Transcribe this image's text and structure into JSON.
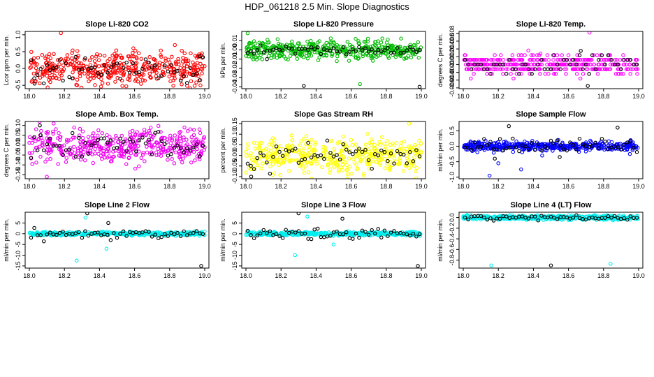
{
  "page_title": "HDP_061218  2.5 Min. Slope Diagnostics",
  "chart_data": [
    {
      "type": "scatter",
      "title": "Slope Li-820 CO2",
      "ylabel": "Lcor ppm per min.",
      "color": "#ff0000",
      "xlim": [
        18.0,
        19.0
      ],
      "ylim": [
        -0.6,
        1.1
      ],
      "xticks": [
        18.0,
        18.2,
        18.4,
        18.6,
        18.8,
        19.0
      ],
      "xtick_labels": [
        "18.0",
        "18.2",
        "18.4",
        "18.6",
        "18.8",
        "19.0"
      ],
      "yticks": [
        -0.5,
        0.0,
        0.5,
        1.0
      ],
      "ytick_labels": [
        "-0.5",
        "0.0",
        "0.5",
        "1.0"
      ],
      "center": 0.0,
      "spread": 0.25,
      "black_spread": 0.2,
      "outliers": [
        [
          18.18,
          1.05
        ],
        [
          18.03,
          -0.45
        ],
        [
          18.92,
          0.45
        ],
        [
          18.97,
          -0.35
        ]
      ]
    },
    {
      "type": "scatter",
      "title": "Slope Li-820 Pressure",
      "ylabel": "kPa per min.",
      "color": "#00bb00",
      "xlim": [
        18.0,
        19.0
      ],
      "ylim": [
        -0.042,
        0.02
      ],
      "xticks": [
        18.0,
        18.2,
        18.4,
        18.6,
        18.8,
        19.0
      ],
      "xtick_labels": [
        "18.0",
        "18.2",
        "18.4",
        "18.6",
        "18.8",
        "19.0"
      ],
      "yticks": [
        -0.04,
        -0.03,
        -0.02,
        -0.01,
        0.0,
        0.01
      ],
      "ytick_labels": [
        "-0.04",
        "-0.03",
        "-0.02",
        "-0.01",
        "0.00",
        "0.01"
      ],
      "center": 0.0,
      "spread": 0.005,
      "black_spread": 0.002,
      "outliers": [
        [
          18.01,
          0.018
        ],
        [
          18.33,
          -0.039
        ],
        [
          18.65,
          -0.037
        ],
        [
          18.99,
          -0.04
        ],
        [
          18.72,
          -0.008
        ],
        [
          18.12,
          -0.01
        ]
      ]
    },
    {
      "type": "scatter",
      "title": "Slope Li-820 Temp.",
      "ylabel": "degrees C per min.",
      "color": "#ff00ff",
      "xlim": [
        18.0,
        19.0
      ],
      "ylim": [
        -0.0062,
        0.0085
      ],
      "xticks": [
        18.0,
        18.2,
        18.4,
        18.6,
        18.8,
        19.0
      ],
      "xtick_labels": [
        "18.0",
        "18.2",
        "18.4",
        "18.6",
        "18.8",
        "19.0"
      ],
      "yticks": [
        -0.006,
        -0.004,
        -0.002,
        0.0,
        0.002,
        0.004,
        0.006,
        0.008
      ],
      "ytick_labels": [
        "-0.006",
        "-0.004",
        "-0.002",
        "0.000",
        "0.002",
        "0.004",
        "0.006",
        "0.008"
      ],
      "center": 0.0,
      "spread": 0.0012,
      "black_spread": 0.0012,
      "quantum": 0.0012,
      "outliers": [
        [
          18.72,
          0.0082
        ],
        [
          18.67,
          0.0035
        ],
        [
          18.44,
          0.0028
        ],
        [
          18.71,
          -0.0055
        ]
      ]
    },
    {
      "type": "scatter",
      "title": "Slope Amb. Box Temp.",
      "ylabel": "degrees C per min.",
      "color": "#ee00ee",
      "xlim": [
        18.0,
        19.0
      ],
      "ylim": [
        -0.17,
        0.12
      ],
      "xticks": [
        18.0,
        18.2,
        18.4,
        18.6,
        18.8,
        19.0
      ],
      "xtick_labels": [
        "18.0",
        "18.2",
        "18.4",
        "18.6",
        "18.8",
        "19.0"
      ],
      "yticks": [
        -0.15,
        -0.1,
        -0.05,
        0.0,
        0.05,
        0.1
      ],
      "ytick_labels": [
        "-0.15",
        "-0.10",
        "-0.05",
        "0.00",
        "0.05",
        "0.10"
      ],
      "center": 0.0,
      "spread": 0.045,
      "black_spread": 0.035,
      "outliers": [
        [
          18.1,
          -0.16
        ],
        [
          18.06,
          0.1
        ],
        [
          18.97,
          0.08
        ]
      ]
    },
    {
      "type": "scatter",
      "title": "Slope Gas Stream RH",
      "ylabel": "percent per min.",
      "color": "#ffff00",
      "xlim": [
        18.0,
        19.0
      ],
      "ylim": [
        -0.11,
        0.16
      ],
      "xticks": [
        18.0,
        18.2,
        18.4,
        18.6,
        18.8,
        19.0
      ],
      "xtick_labels": [
        "18.0",
        "18.2",
        "18.4",
        "18.6",
        "18.8",
        "19.0"
      ],
      "yticks": [
        -0.1,
        -0.05,
        0.0,
        0.05,
        0.1,
        0.15
      ],
      "ytick_labels": [
        "-0.10",
        "-0.05",
        "0.00",
        "0.05",
        "0.10",
        "0.15"
      ],
      "center": 0.0,
      "spread": 0.04,
      "black_spread": 0.035,
      "outliers": [
        [
          18.93,
          0.15
        ],
        [
          18.03,
          -0.1
        ]
      ]
    },
    {
      "type": "scatter",
      "title": "Slope Sample Flow",
      "ylabel": "ml/min per min.",
      "color": "#0000ff",
      "xlim": [
        18.0,
        19.0
      ],
      "ylim": [
        -1.05,
        0.8
      ],
      "xticks": [
        18.0,
        18.2,
        18.4,
        18.6,
        18.8,
        19.0
      ],
      "xtick_labels": [
        "18.0",
        "18.2",
        "18.4",
        "18.6",
        "18.8",
        "19.0"
      ],
      "yticks": [
        -1.0,
        -0.5,
        0.0,
        0.5
      ],
      "ytick_labels": [
        "-1.0",
        "-0.5",
        "0.0",
        "0.5"
      ],
      "center": 0.0,
      "spread": 0.07,
      "black_spread": 0.1,
      "outliers": [
        [
          18.15,
          -0.95
        ],
        [
          18.26,
          0.65
        ],
        [
          18.33,
          -0.75
        ],
        [
          18.88,
          0.6
        ],
        [
          18.2,
          -0.55
        ],
        [
          18.18,
          -0.4
        ],
        [
          18.45,
          -0.3
        ],
        [
          18.55,
          -0.35
        ],
        [
          18.95,
          -0.25
        ]
      ]
    },
    {
      "type": "scatter",
      "title": "Slope Line 2 Flow",
      "ylabel": "ml/min per min.",
      "color": "#00eeee",
      "xlim": [
        18.0,
        19.0
      ],
      "ylim": [
        -16,
        10
      ],
      "xticks": [
        18.0,
        18.2,
        18.4,
        18.6,
        18.8,
        19.0
      ],
      "xtick_labels": [
        "18.0",
        "18.2",
        "18.4",
        "18.6",
        "18.8",
        "19.0"
      ],
      "yticks": [
        -15,
        -10,
        -5,
        0,
        5
      ],
      "ytick_labels": [
        "-15",
        "-10",
        "-5",
        "0",
        "5"
      ],
      "center": 0.0,
      "spread": 0.4,
      "black_spread": 1.3,
      "outliers": [
        [
          18.27,
          -12.5
        ],
        [
          18.33,
          9.5
        ],
        [
          18.32,
          7.5
        ],
        [
          18.98,
          -15
        ],
        [
          18.44,
          -7
        ],
        [
          18.45,
          5
        ]
      ]
    },
    {
      "type": "scatter",
      "title": "Slope Line 3 Flow",
      "ylabel": "ml/min per min.",
      "color": "#00eeee",
      "xlim": [
        18.0,
        19.0
      ],
      "ylim": [
        -16,
        10
      ],
      "xticks": [
        18.0,
        18.2,
        18.4,
        18.6,
        18.8,
        19.0
      ],
      "xtick_labels": [
        "18.0",
        "18.2",
        "18.4",
        "18.6",
        "18.8",
        "19.0"
      ],
      "yticks": [
        -15,
        -10,
        -5,
        0,
        5
      ],
      "ytick_labels": [
        "-15",
        "-10",
        "-5",
        "0",
        "5"
      ],
      "center": 0.0,
      "spread": 0.4,
      "black_spread": 1.3,
      "outliers": [
        [
          18.28,
          -10
        ],
        [
          18.3,
          9.5
        ],
        [
          18.35,
          8
        ],
        [
          18.98,
          -15
        ],
        [
          18.5,
          -5
        ],
        [
          18.55,
          7
        ]
      ]
    },
    {
      "type": "scatter",
      "title": "Slope Line 4 (LT) Flow",
      "ylabel": "ml/min per min.",
      "color": "#00eeee",
      "xlim": [
        18.0,
        19.0
      ],
      "ylim": [
        -0.95,
        0.1
      ],
      "xticks": [
        18.0,
        18.2,
        18.4,
        18.6,
        18.8,
        19.0
      ],
      "xtick_labels": [
        "18.0",
        "18.2",
        "18.4",
        "18.6",
        "18.8",
        "19.0"
      ],
      "yticks": [
        -0.8,
        -0.6,
        -0.4,
        -0.2,
        0.0
      ],
      "ytick_labels": [
        "-0.8",
        "-0.6",
        "-0.4",
        "-0.2",
        "0.0"
      ],
      "center": 0.0,
      "spread": 0.02,
      "black_spread": 0.025,
      "outliers": [
        [
          18.16,
          -0.9
        ],
        [
          18.5,
          -0.9
        ],
        [
          18.84,
          -0.87
        ]
      ]
    }
  ]
}
